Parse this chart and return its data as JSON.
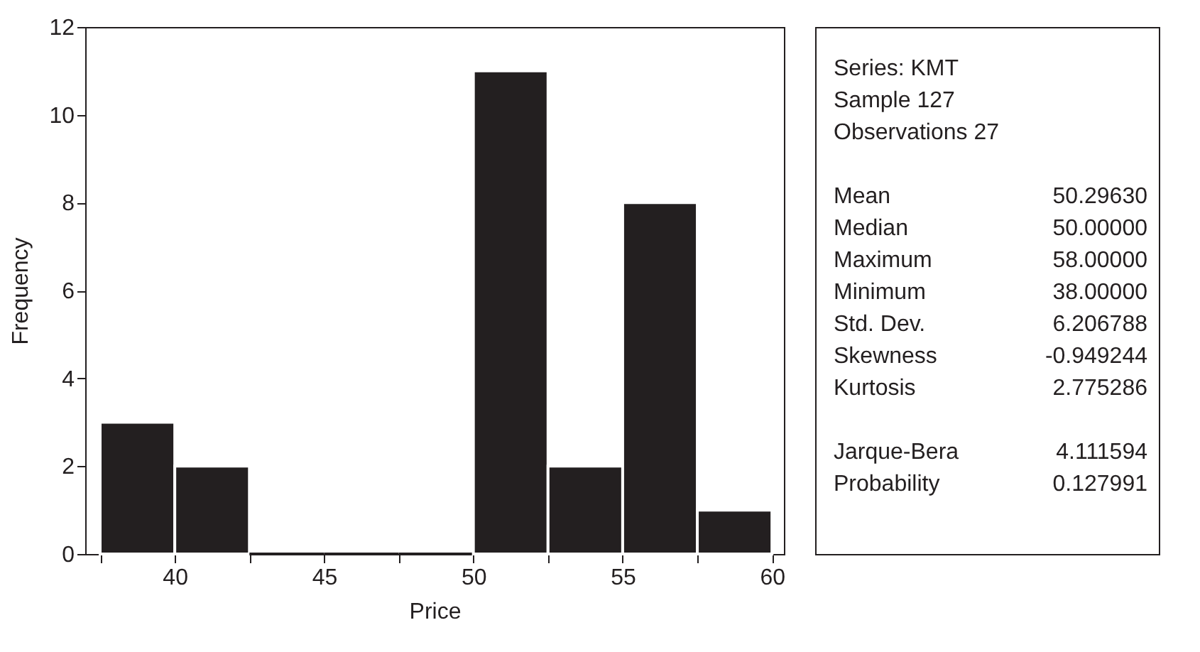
{
  "chart_data": {
    "type": "histogram",
    "xlabel": "Price",
    "ylabel": "Frequency",
    "bins": [
      37.5,
      40,
      42.5,
      45,
      47.5,
      50,
      52.5,
      55,
      57.5,
      60
    ],
    "values": [
      3,
      2,
      0,
      0,
      0,
      11,
      2,
      8,
      1
    ],
    "color": "#231f20",
    "xlim": [
      37,
      60.4
    ],
    "ylim": [
      0,
      12
    ],
    "xticks": [
      {
        "value": 37.5,
        "label": null
      },
      40,
      {
        "value": 42.5,
        "label": null
      },
      45,
      {
        "value": 47.5,
        "label": null
      },
      50,
      {
        "value": 52.5,
        "label": null
      },
      55,
      {
        "value": 57.5,
        "label": null
      },
      60
    ],
    "yticks": [
      0,
      2,
      4,
      6,
      8,
      10,
      12
    ],
    "grid": false,
    "annotations": [
      "Series: KMT",
      "Sample 127",
      "Observations 27",
      "Mean",
      "50.29630",
      "Median",
      "50.00000",
      "Maximum",
      "58.00000",
      "Minimum",
      "38.00000",
      "Std. Dev.",
      "6.206788",
      "Skewness",
      "-0.949244",
      "Kurtosis",
      "2.775286",
      "Jarque-Bera",
      "4.111594",
      "Probability",
      "0.127991"
    ]
  }
}
